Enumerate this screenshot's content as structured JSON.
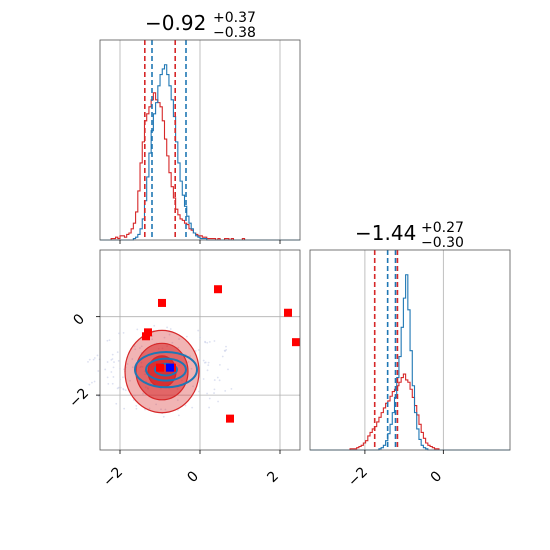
{
  "chart_data": {
    "type": "corner",
    "colors": {
      "series_a": "#d62728",
      "series_b": "#1f77b4",
      "outlier": "#ff0000",
      "truth": "#0000ff",
      "grid": "#b0b0b0"
    },
    "param1": {
      "title_main": "−0.92",
      "title_sup": "+0.37",
      "title_sub": "−0.38",
      "range": [
        -2.5,
        2.5
      ],
      "ticks": [
        -2,
        0,
        2
      ],
      "tick_labels": [
        "−2",
        "0",
        "2"
      ],
      "quantiles_a": [
        -1.38,
        -0.62
      ],
      "quantiles_b": [
        -1.2,
        -0.35
      ],
      "hist_a": [
        0,
        0,
        0,
        0,
        0,
        1,
        1,
        2,
        1,
        3,
        3,
        2,
        4,
        5,
        8,
        12,
        20,
        35,
        55,
        70,
        85,
        90,
        95,
        100,
        105,
        100,
        98,
        95,
        85,
        72,
        60,
        48,
        38,
        30,
        22,
        18,
        15,
        14,
        12,
        11,
        8,
        7,
        5,
        4,
        3,
        3,
        2,
        2,
        1,
        1,
        1,
        1,
        0,
        1,
        0,
        0,
        1,
        1,
        0,
        1,
        0,
        0,
        0,
        0,
        1,
        0,
        0,
        0,
        0,
        0,
        0,
        0,
        0,
        0,
        0,
        0,
        0,
        0,
        0,
        0,
        0,
        0,
        0,
        0,
        0,
        0,
        0,
        0,
        0,
        0
      ],
      "hist_b": [
        0,
        0,
        0,
        0,
        0,
        0,
        0,
        0,
        0,
        0,
        0,
        0,
        0,
        0,
        0,
        1,
        2,
        4,
        8,
        15,
        28,
        45,
        62,
        78,
        90,
        98,
        110,
        118,
        122,
        125,
        118,
        110,
        100,
        88,
        70,
        55,
        42,
        32,
        24,
        17,
        12,
        8,
        5,
        3,
        2,
        1,
        1,
        1,
        0,
        0,
        0,
        0,
        0,
        0,
        0,
        0,
        0,
        0,
        0,
        0,
        0,
        0,
        0,
        0,
        0,
        0,
        0,
        0,
        0,
        0,
        0,
        0,
        0,
        0,
        0,
        0,
        0,
        0,
        0,
        0,
        0,
        0,
        0,
        0,
        0,
        0,
        0,
        0,
        0,
        0
      ],
      "hist_x0": -2.5,
      "hist_bin": 0.0556
    },
    "param2": {
      "title_main": "−1.44",
      "title_sup": "+0.27",
      "title_sub": "−0.30",
      "range": [
        -3.4,
        1.7
      ],
      "ticks": [
        -2,
        0
      ],
      "tick_labels": [
        "−2",
        "0"
      ],
      "quantiles_a": [
        -1.75,
        -1.17
      ],
      "quantiles_b": [
        -1.42,
        -1.22
      ],
      "hist_a": [
        0,
        0,
        0,
        0,
        0,
        0,
        0,
        0,
        0,
        0,
        0,
        0,
        0,
        0,
        0,
        0,
        0,
        0,
        1,
        1,
        1,
        2,
        3,
        4,
        6,
        8,
        12,
        15,
        18,
        20,
        24,
        28,
        32,
        36,
        40,
        42,
        46,
        50,
        52,
        55,
        58,
        62,
        65,
        60,
        58,
        52,
        45,
        38,
        30,
        22,
        15,
        10,
        6,
        4,
        3,
        2,
        1,
        1,
        0,
        0,
        0,
        0,
        0,
        0,
        0,
        0,
        0,
        0,
        0,
        0,
        0,
        0,
        0,
        0,
        0,
        0,
        0,
        0,
        0,
        0,
        0,
        0,
        0,
        0,
        0,
        0,
        0,
        0,
        0,
        0
      ],
      "hist_b": [
        0,
        0,
        0,
        0,
        0,
        0,
        0,
        0,
        0,
        0,
        0,
        0,
        0,
        0,
        0,
        0,
        0,
        0,
        0,
        0,
        0,
        0,
        0,
        0,
        0,
        0,
        0,
        0,
        0,
        0,
        0,
        1,
        2,
        4,
        8,
        14,
        22,
        32,
        45,
        62,
        80,
        105,
        130,
        150,
        120,
        85,
        55,
        32,
        18,
        9,
        4,
        2,
        1,
        0,
        0,
        0,
        0,
        0,
        0,
        0,
        0,
        0,
        0,
        0,
        0,
        0,
        0,
        0,
        0,
        0,
        0,
        0,
        0,
        0,
        0,
        0,
        0,
        0,
        0,
        0,
        0,
        0,
        0,
        0,
        0,
        0,
        0,
        0,
        0,
        0
      ],
      "hist_x0": -3.4,
      "hist_bin": 0.0567
    },
    "scatter": {
      "xrange": [
        -2.5,
        2.5
      ],
      "yrange": [
        -3.4,
        1.7
      ],
      "xticks": [
        -2,
        0,
        2
      ],
      "xtick_labels": [
        "−2",
        "0",
        "2"
      ],
      "yticks": [
        0,
        -2
      ],
      "ytick_labels": [
        "0",
        "−2"
      ],
      "outliers": [
        [
          -0.95,
          0.35
        ],
        [
          0.45,
          0.7
        ],
        [
          -1.3,
          -0.4
        ],
        [
          -1.35,
          -0.5
        ],
        [
          2.2,
          0.1
        ],
        [
          2.4,
          -0.65
        ],
        [
          0.75,
          -2.6
        ],
        [
          -0.7,
          -1.3
        ],
        [
          -1.0,
          -1.3
        ]
      ],
      "truth": [
        -0.75,
        -1.3
      ],
      "contour_center": [
        -0.95,
        -1.4
      ],
      "contour_radii": [
        [
          1.85,
          1.05
        ],
        [
          1.3,
          0.72
        ],
        [
          0.7,
          0.4
        ]
      ],
      "blue_contour_center": [
        -0.85,
        -1.35
      ],
      "blue_contour_radii": [
        [
          1.55,
          0.45
        ],
        [
          1.0,
          0.28
        ],
        [
          0.55,
          0.15
        ]
      ]
    }
  }
}
